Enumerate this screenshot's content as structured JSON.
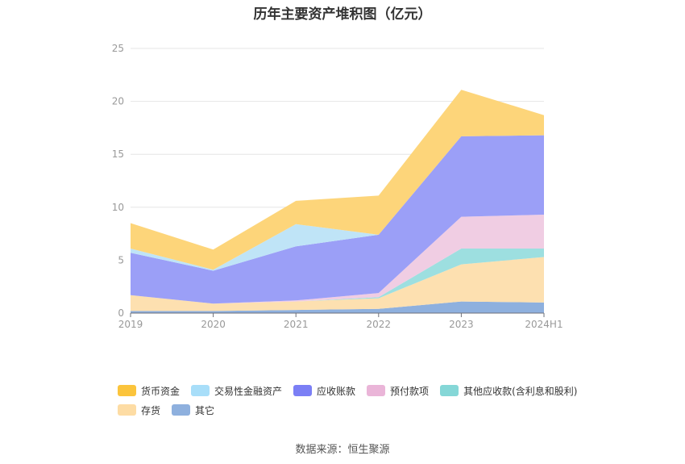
{
  "chart_data": {
    "type": "area",
    "stacked": true,
    "title": "历年主要资产堆积图（亿元）",
    "categories": [
      "2019",
      "2020",
      "2021",
      "2022",
      "2023",
      "2024H1"
    ],
    "ylim": [
      0,
      25
    ],
    "yticks": [
      "0",
      "5",
      "10",
      "15",
      "20",
      "25"
    ],
    "grid": true,
    "legend_position": "bottom",
    "series": [
      {
        "name": "其它",
        "color": "#8eb0de",
        "values": [
          0.2,
          0.2,
          0.3,
          0.4,
          1.1,
          1.0
        ]
      },
      {
        "name": "存货",
        "color": "#fde0b0",
        "values": [
          1.5,
          0.7,
          0.8,
          1.0,
          3.5,
          4.3
        ]
      },
      {
        "name": "其他应收款(含利息和股利)",
        "color": "#9ddfe0",
        "values": [
          0.0,
          0.0,
          0.0,
          0.1,
          1.5,
          0.8
        ]
      },
      {
        "name": "预付款项",
        "color": "#f0cde3",
        "values": [
          0.0,
          0.0,
          0.1,
          0.4,
          3.0,
          3.2
        ]
      },
      {
        "name": "应收账款",
        "color": "#9b9ff7",
        "values": [
          4.0,
          3.1,
          5.1,
          5.5,
          7.6,
          7.5
        ]
      },
      {
        "name": "交易性金融资产",
        "color": "#bfe4f7",
        "values": [
          0.4,
          0.1,
          2.1,
          0.0,
          0.0,
          0.0
        ]
      },
      {
        "name": "货币资金",
        "color": "#fdd57a",
        "values": [
          2.4,
          1.9,
          2.2,
          3.7,
          4.4,
          1.9
        ]
      }
    ]
  },
  "legend": {
    "items": [
      {
        "label": "货币资金",
        "color": "#fbc43c"
      },
      {
        "label": "交易性金融资产",
        "color": "#a8def9"
      },
      {
        "label": "应收账款",
        "color": "#7b7ff5"
      },
      {
        "label": "预付款项",
        "color": "#eab5d8"
      },
      {
        "label": "其他应收款(含利息和股利)",
        "color": "#85d7d7"
      },
      {
        "label": "存货",
        "color": "#fddca4"
      },
      {
        "label": "其它",
        "color": "#8eb0de"
      }
    ]
  },
  "source": "数据来源：恒生聚源"
}
